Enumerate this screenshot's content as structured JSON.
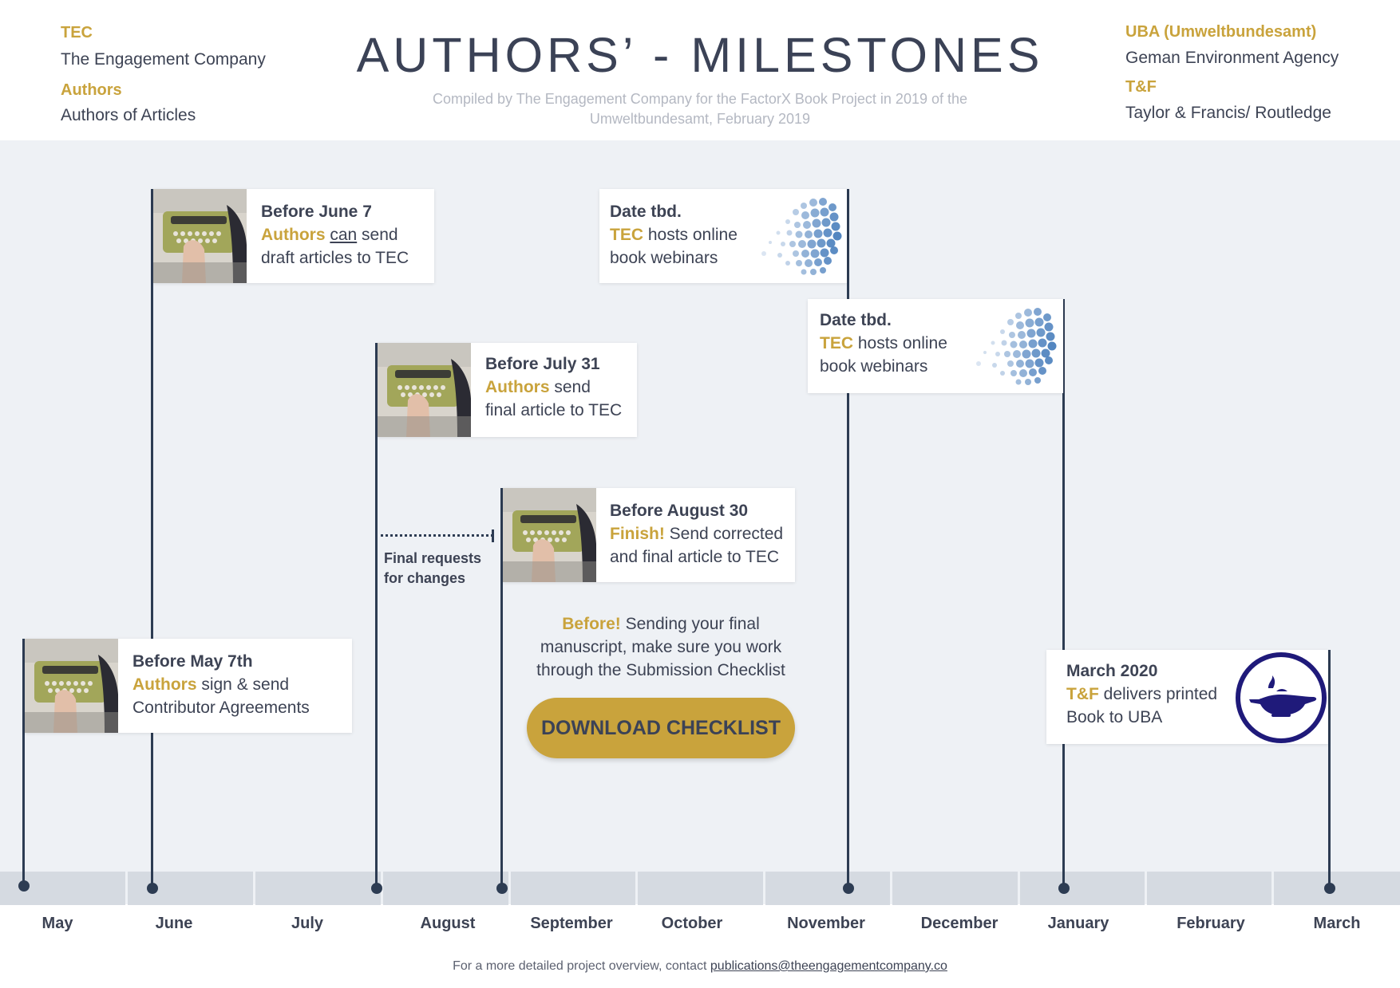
{
  "header": {
    "title": "AUTHORS’ - MILESTONES",
    "subtitle_line1": "Compiled by The Engagement Company for the FactorX Book Project in 2019 of the",
    "subtitle_line2": "Umweltbundesamt, February 2019",
    "legend_left": [
      {
        "key": "TEC",
        "value": "The Engagement Company"
      },
      {
        "key": "Authors",
        "value": "Authors of Articles"
      }
    ],
    "legend_right": [
      {
        "key": "UBA (Umweltbundesamt)",
        "value": "Geman Environment Agency"
      },
      {
        "key": "T&F",
        "value": "Taylor & Francis/ Routledge"
      }
    ]
  },
  "colors": {
    "accent": "#c9a33c",
    "navy": "#2d3c53",
    "band": "#eef1f5",
    "cell": "#d5dae1"
  },
  "months": [
    "May",
    "June",
    "July",
    "August",
    "September",
    "October",
    "November",
    "December",
    "January",
    "February",
    "March"
  ],
  "milestones": {
    "june7": {
      "head": "Before June 7",
      "actor": "Authors",
      "verb": "can",
      "rest": " send",
      "line2": "draft articles to TEC",
      "icon": "typewriter-photo"
    },
    "webinar1": {
      "head": "Date tbd.",
      "actor": "TEC",
      "rest": " hosts online",
      "line2": "book webinars",
      "icon": "dotted-globe-icon"
    },
    "webinar2": {
      "head": "Date tbd.",
      "actor": "TEC",
      "rest": " hosts online",
      "line2": "book webinars",
      "icon": "dotted-globe-icon"
    },
    "july31": {
      "head": "Before July 31",
      "actor": "Authors",
      "rest": " send",
      "line2": "final article to TEC",
      "icon": "typewriter-photo"
    },
    "aug30": {
      "head": "Before August 30",
      "actor": "Finish!",
      "rest": " Send corrected",
      "line2": "and final article to TEC",
      "icon": "typewriter-photo"
    },
    "may7": {
      "head": "Before May 7th",
      "actor": "Authors",
      "rest": " sign & send",
      "line2": "Contributor Agreements",
      "icon": "typewriter-photo"
    },
    "march2020": {
      "head": "March 2020",
      "actor": "T&F",
      "rest": " delivers printed",
      "line2": "Book to UBA",
      "icon": "oil-lamp-logo"
    }
  },
  "final_requests": {
    "line1": "Final requests",
    "line2": "for changes"
  },
  "checklist": {
    "lead": "Before!",
    "line1_rest": " Sending your final",
    "line2": "manuscript, make sure you work",
    "line3": "through the Submission Checklist",
    "button": "DOWNLOAD CHECKLIST"
  },
  "footer": {
    "text": "For a more detailed project overview, contact ",
    "email": "publications@theengagementcompany.co"
  }
}
